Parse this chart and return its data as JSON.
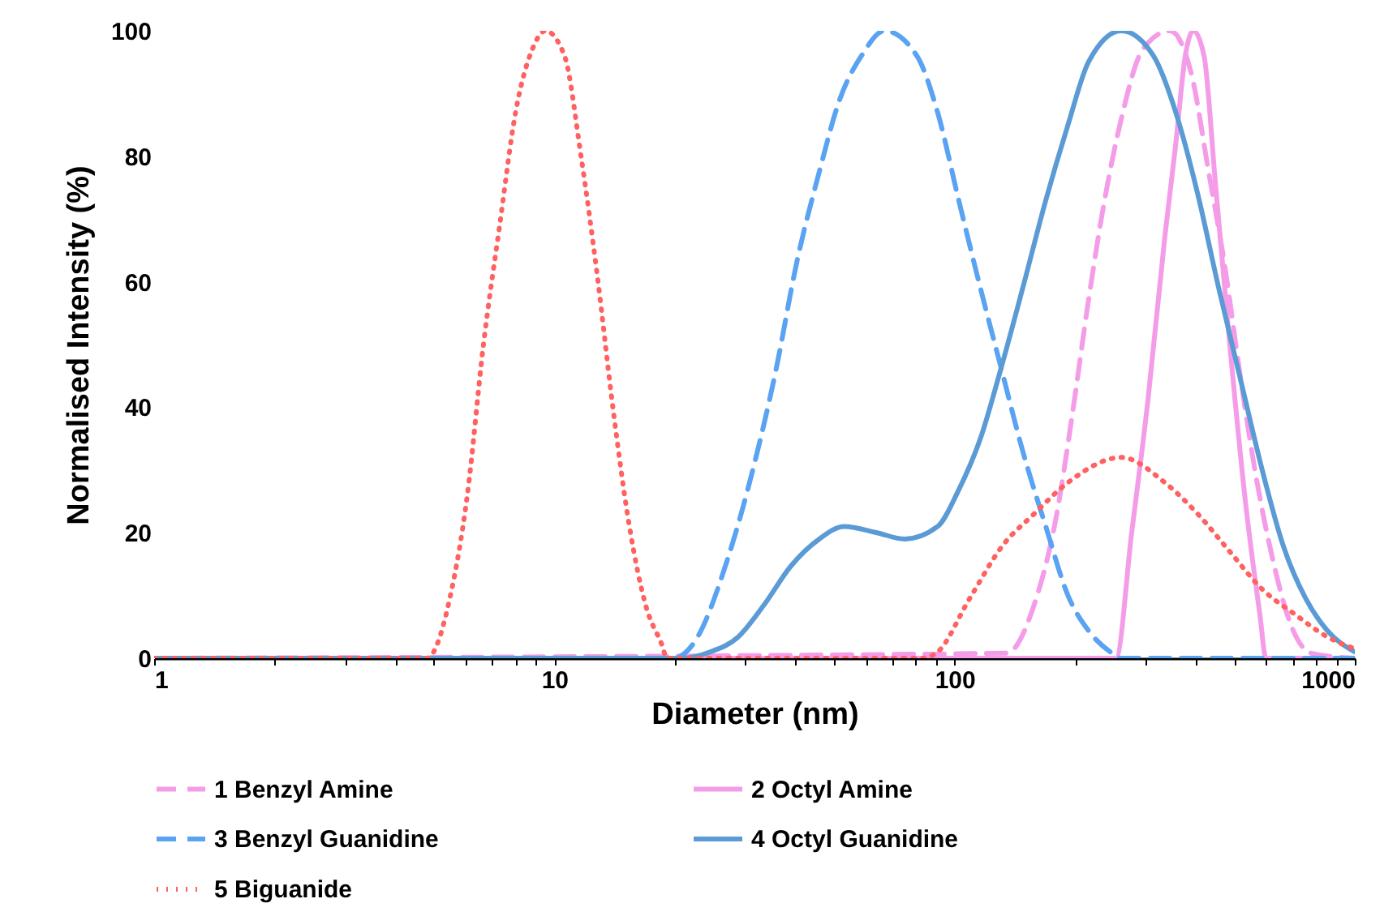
{
  "chart_data": {
    "type": "line",
    "xlabel": "Diameter (nm)",
    "ylabel": "Normalised Intensity (%)",
    "log": "x",
    "xlim": [
      1,
      1000
    ],
    "ylim": [
      0,
      100
    ],
    "xticks": [
      1,
      {
        "value": 2,
        "label": null
      },
      {
        "value": 3,
        "label": null
      },
      {
        "value": 4,
        "label": null
      },
      {
        "value": 5,
        "label": null
      },
      {
        "value": 6,
        "label": null
      },
      {
        "value": 7,
        "label": null
      },
      {
        "value": 8,
        "label": null
      },
      {
        "value": 9,
        "label": null
      },
      10,
      {
        "value": 20,
        "label": null
      },
      {
        "value": 30,
        "label": null
      },
      {
        "value": 40,
        "label": null
      },
      {
        "value": 50,
        "label": null
      },
      {
        "value": 60,
        "label": null
      },
      {
        "value": 70,
        "label": null
      },
      {
        "value": 80,
        "label": null
      },
      {
        "value": 90,
        "label": null
      },
      100,
      {
        "value": 200,
        "label": null
      },
      {
        "value": 300,
        "label": null
      },
      {
        "value": 400,
        "label": null
      },
      {
        "value": 500,
        "label": null
      },
      {
        "value": 600,
        "label": null
      },
      {
        "value": 700,
        "label": null
      },
      {
        "value": 800,
        "label": null
      },
      {
        "value": 900,
        "label": null
      },
      1000
    ],
    "yticks": [
      0,
      20,
      40,
      60,
      80,
      100
    ],
    "grid": false,
    "legend": "bottom",
    "series": [
      {
        "name": "1 Benzyl Amine",
        "color": "#f49ce8",
        "line_style": "dashed",
        "x": [
          1,
          135,
          158,
          180,
          197,
          216,
          237,
          261,
          295,
          345,
          391,
          430,
          472,
          520,
          570,
          625,
          686,
          778,
          1000
        ],
        "values": [
          0,
          0.8,
          8.5,
          23,
          39,
          57,
          73,
          86,
          97,
          100,
          93,
          78,
          63,
          44,
          28,
          15.5,
          6,
          0.8,
          0
        ]
      },
      {
        "name": "2 Octyl Amine",
        "color": "#f49ce8",
        "line_style": "solid",
        "x": [
          1,
          253,
          277,
          304,
          335,
          357,
          377,
          395,
          420,
          448,
          487,
          535,
          579,
          600,
          1000
        ],
        "values": [
          0,
          0,
          20,
          41,
          67,
          82,
          96,
          100,
          96,
          76,
          50,
          24,
          7,
          0,
          0
        ]
      },
      {
        "name": "3 Benzyl Guanidine",
        "color": "#5aa2f2",
        "line_style": "dashed",
        "x": [
          1,
          19.8,
          22.4,
          27,
          31.6,
          35.8,
          40.3,
          45.9,
          51.6,
          58.5,
          66.8,
          80.5,
          90.7,
          102.4,
          116,
          131,
          148,
          169,
          192,
          216,
          245,
          260,
          1000
        ],
        "values": [
          0,
          0,
          2.6,
          15.5,
          31,
          46,
          63,
          77.5,
          89,
          96,
          100,
          96,
          87,
          73,
          59,
          46,
          33,
          21,
          10,
          4.4,
          1,
          0,
          0
        ]
      },
      {
        "name": "4 Octyl Guanidine",
        "color": "#5b9bd5",
        "line_style": "solid",
        "x": [
          1,
          20.9,
          24.5,
          28.8,
          33.4,
          39,
          45.9,
          53,
          64,
          75,
          90.7,
          102,
          116,
          131,
          148,
          169,
          192,
          216,
          261,
          314,
          357,
          405,
          457,
          520,
          587,
          662,
          754,
          854,
          1000
        ],
        "values": [
          0,
          0,
          1,
          3.4,
          8.5,
          14.7,
          19,
          21,
          20,
          19,
          21,
          26.6,
          35,
          46.5,
          59,
          73,
          85,
          95,
          100,
          96,
          87,
          74,
          59,
          44,
          30,
          18,
          9.5,
          4.4,
          1
        ]
      },
      {
        "name": "5 Biguanide",
        "color": "#ff6060",
        "line_style": "dotted",
        "x": [
          1,
          4.8,
          5.5,
          6.06,
          6.65,
          7.3,
          8,
          8.8,
          9.5,
          10.6,
          11.66,
          12.8,
          14,
          15.4,
          16.9,
          18.6,
          19.1,
          83,
          90.7,
          109,
          132,
          158,
          192,
          261,
          335,
          405,
          487,
          587,
          708,
          854,
          1000
        ],
        "values": [
          0,
          0,
          10,
          26,
          50,
          69,
          87,
          97,
          100,
          96,
          80,
          61,
          40,
          21,
          8.5,
          2,
          0,
          0,
          1,
          9.5,
          18,
          23,
          28,
          32,
          28,
          23,
          17,
          11,
          7,
          3.4,
          1.5
        ]
      }
    ]
  }
}
